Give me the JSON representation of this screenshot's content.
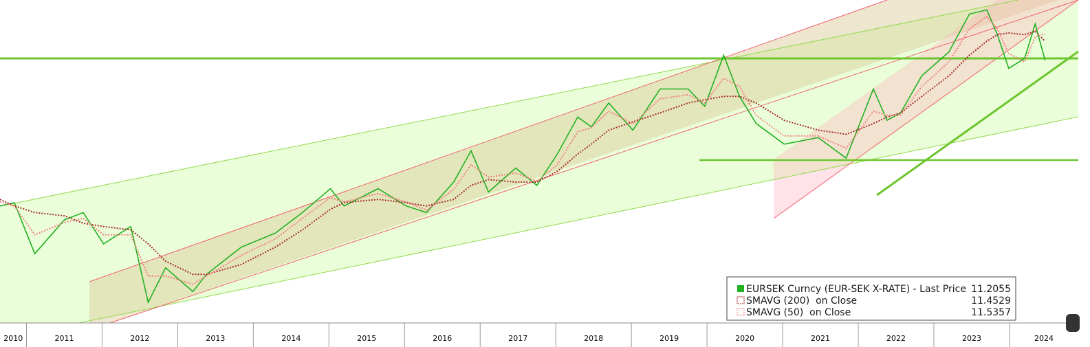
{
  "chart_data": {
    "type": "line",
    "x": [
      2010.65,
      2010.84,
      2011.11,
      2011.5,
      2011.75,
      2012.02,
      2012.38,
      2012.61,
      2012.84,
      2013.2,
      2013.38,
      2013.84,
      2014.29,
      2014.65,
      2015.02,
      2015.2,
      2015.65,
      2016.02,
      2016.29,
      2016.65,
      2016.88,
      2017.11,
      2017.47,
      2017.75,
      2018.02,
      2018.29,
      2018.47,
      2018.7,
      2019.02,
      2019.38,
      2019.75,
      2019.97,
      2020.22,
      2020.43,
      2020.65,
      2021.02,
      2021.47,
      2021.84,
      2022.2,
      2022.38,
      2022.56,
      2022.84,
      2023.2,
      2023.47,
      2023.7,
      2023.84,
      2023.99,
      2024.2,
      2024.34,
      2024.47
    ],
    "series": [
      {
        "name": "EURSEK Curncy (EUR-SEK X-RATE) - Last Price",
        "color": "#22b022",
        "line_style": "solid",
        "last_value": 11.2055,
        "values": [
          9.45,
          9.49,
          8.87,
          9.28,
          9.37,
          8.99,
          9.2,
          8.28,
          8.7,
          8.41,
          8.62,
          8.95,
          9.12,
          9.37,
          9.66,
          9.45,
          9.66,
          9.45,
          9.37,
          9.74,
          10.12,
          9.62,
          9.91,
          9.7,
          10.08,
          10.53,
          10.41,
          10.7,
          10.37,
          10.87,
          10.87,
          10.66,
          11.28,
          10.78,
          10.45,
          10.2,
          10.28,
          10.03,
          10.87,
          10.49,
          10.58,
          11.03,
          11.32,
          11.78,
          11.83,
          11.53,
          11.12,
          11.24,
          11.66,
          11.22
        ]
      },
      {
        "name": "SMAVG (200)  on Close",
        "color": "#a52a2a",
        "line_style": "dotted",
        "last_value": 11.4529,
        "values": [
          9.53,
          9.45,
          9.37,
          9.33,
          9.24,
          9.2,
          9.16,
          8.99,
          8.78,
          8.62,
          8.62,
          8.74,
          8.95,
          9.16,
          9.41,
          9.49,
          9.53,
          9.49,
          9.45,
          9.53,
          9.7,
          9.77,
          9.74,
          9.74,
          9.87,
          10.08,
          10.2,
          10.37,
          10.47,
          10.58,
          10.7,
          10.74,
          10.78,
          10.78,
          10.7,
          10.49,
          10.37,
          10.32,
          10.45,
          10.53,
          10.58,
          10.78,
          11.03,
          11.28,
          11.45,
          11.53,
          11.55,
          11.53,
          11.57,
          11.45
        ]
      },
      {
        "name": "SMAVG (50)  on Close",
        "color": "#f08080",
        "line_style": "dotted",
        "last_value": 11.5357,
        "values": [
          9.5,
          9.45,
          9.1,
          9.25,
          9.3,
          9.1,
          9.1,
          8.6,
          8.6,
          8.5,
          8.6,
          8.85,
          9.05,
          9.3,
          9.55,
          9.5,
          9.6,
          9.5,
          9.4,
          9.65,
          9.95,
          9.8,
          9.85,
          9.75,
          9.95,
          10.35,
          10.4,
          10.6,
          10.45,
          10.75,
          10.8,
          10.7,
          11.0,
          10.9,
          10.55,
          10.3,
          10.3,
          10.15,
          10.6,
          10.55,
          10.55,
          10.9,
          11.2,
          11.6,
          11.75,
          11.6,
          11.3,
          11.2,
          11.5,
          11.54
        ]
      }
    ],
    "xlim": [
      2010.65,
      2024.91
    ],
    "xticks": [
      {
        "value": 2010,
        "label": "2010"
      },
      {
        "value": 2011,
        "label": "2011"
      },
      {
        "value": 2012,
        "label": "2012"
      },
      {
        "value": 2013,
        "label": "2013"
      },
      {
        "value": 2014,
        "label": "2014"
      },
      {
        "value": 2015,
        "label": "2015"
      },
      {
        "value": 2016,
        "label": "2016"
      },
      {
        "value": 2017,
        "label": "2017"
      },
      {
        "value": 2018,
        "label": "2018"
      },
      {
        "value": 2019,
        "label": "2019"
      },
      {
        "value": 2020,
        "label": "2020"
      },
      {
        "value": 2021,
        "label": "2021"
      },
      {
        "value": 2022,
        "label": "2022"
      },
      {
        "value": 2023,
        "label": "2023"
      },
      {
        "value": 2024,
        "label": "2024"
      }
    ],
    "ylim": [
      8.03,
      11.95
    ]
  }
}
